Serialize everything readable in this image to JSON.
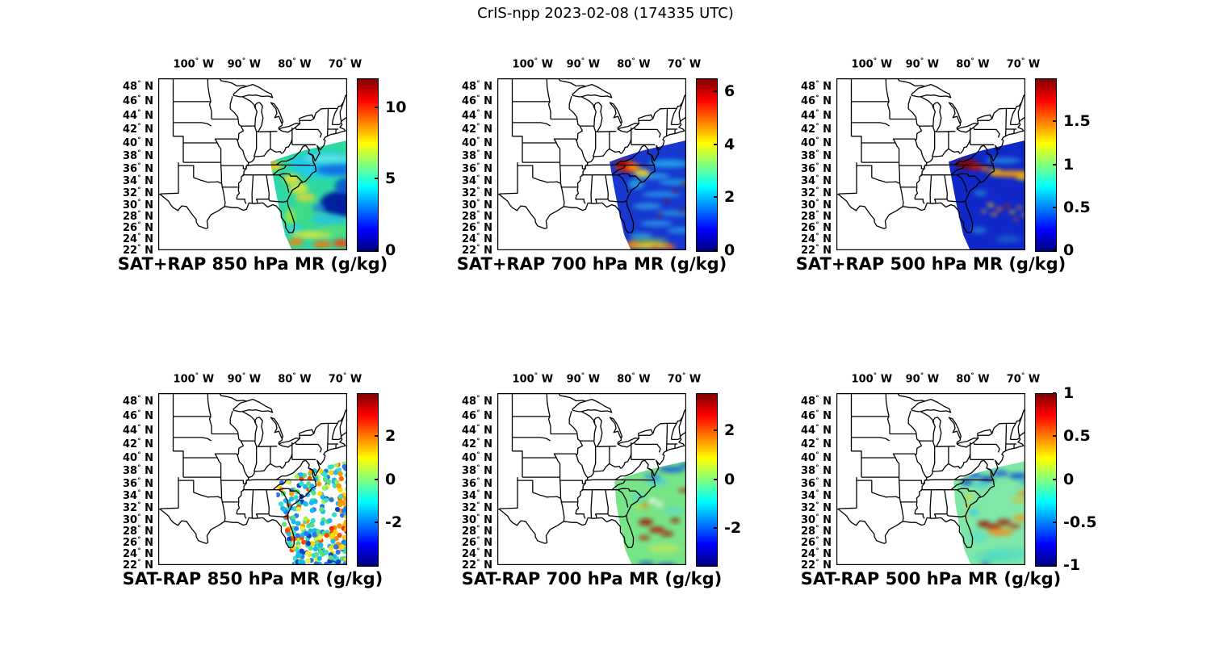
{
  "figure_title": "CrIS-npp 2023-02-08 (174335 UTC)",
  "axes": {
    "lon_tick_values": [
      -100,
      -90,
      -80,
      -70
    ],
    "lon_tick_labels": [
      "100° W",
      "90° W",
      "80° W",
      "70° W"
    ],
    "lat_tick_values": [
      48,
      46,
      44,
      42,
      40,
      38,
      36,
      34,
      32,
      30,
      28,
      26,
      24,
      22
    ],
    "lat_label_suffix": "N",
    "lon_label_suffix": "W",
    "lon_domain": [
      -107,
      -69.6
    ],
    "lat_domain": [
      22,
      49.05
    ]
  },
  "map": {
    "region": "Contiguous United States east of ~107W with state boundaries, Great Lakes, Gulf and Atlantic coasts",
    "projection": "mercator"
  },
  "colorbar_style": {
    "colormap": "jet",
    "bottom_color": "#000080",
    "top_color": "#800000"
  },
  "chart_data": [
    {
      "id": "sat_plus_rap_850",
      "type": "heatmap",
      "title": "SAT+RAP 850 hPa MR (g/kg)",
      "units": "g/kg",
      "colormap": "jet",
      "colorbar_range": [
        0,
        12
      ],
      "colorbar_ticks": [
        0,
        5,
        10
      ],
      "swath_note": "CrIS swath over SE US coast and western Atlantic: mostly 4-7 g/kg (green/cyan), dry dark-blue pocket near 29-31N offshore, yellow coastal arc, moist 9-11 g/kg orange band near 23-24N, yellow maximum at swath tip near 36N inland"
    },
    {
      "id": "sat_plus_rap_700",
      "type": "heatmap",
      "title": "SAT+RAP 700 hPa MR (g/kg)",
      "units": "g/kg",
      "colormap": "jet",
      "colorbar_range": [
        0,
        6.5
      ],
      "colorbar_ticks": [
        0,
        2,
        4,
        6
      ],
      "swath_note": "mostly 0.5-2 g/kg (dark blue with cyan streaks) offshore; 5-6.5 g/kg red/orange maximum over western NC/VA near 36-37N; yellow-orange moist band near 22-23N; scattered dark-red speckles mid-ocean"
    },
    {
      "id": "sat_plus_rap_500",
      "type": "heatmap",
      "title": "SAT+RAP 500 hPa MR (g/kg)",
      "units": "g/kg",
      "colormap": "jet",
      "colorbar_range": [
        0,
        2
      ],
      "colorbar_ticks": [
        0,
        0.5,
        1,
        1.5
      ],
      "swath_note": "mostly below 0.5 g/kg (dark blue); 1.8-2 g/kg dark-red maximum along 36-37N inland; 1-1.5 g/kg orange/yellow streak near 35N to the east edge; speckled yellow/red patches 27-30N"
    },
    {
      "id": "sat_minus_rap_850",
      "type": "scatter",
      "title": "SAT-RAP 850 hPa MR (g/kg)",
      "units": "g/kg",
      "colormap": "jet",
      "colorbar_range": [
        -4,
        4
      ],
      "colorbar_ticks": [
        -2,
        0,
        2
      ],
      "swath_note": "scattered point differences offshore 22-40N: +2 to +3 g/kg orange/red cluster near 27-29N and along 70W at 34-37N, mixed -2 to +1 cyan/green/yellow elsewhere, white data gaps near 31-33N"
    },
    {
      "id": "sat_minus_rap_700",
      "type": "heatmap",
      "title": "SAT-RAP 700 hPa MR (g/kg)",
      "units": "g/kg",
      "colormap": "jet",
      "colorbar_range": [
        -3.5,
        3.5
      ],
      "colorbar_ticks": [
        -2,
        0,
        2
      ],
      "swath_note": "near-zero (green) over most of swath; +3 g/kg dark-red patches 26-30N; -2 to -3 blue streaks near 38N and along 22N; small orange/yellow spots near 32N coast"
    },
    {
      "id": "sat_minus_rap_500",
      "type": "heatmap",
      "title": "SAT-RAP 500 hPa MR (g/kg)",
      "units": "g/kg",
      "colormap": "jet",
      "colorbar_range": [
        -1,
        1
      ],
      "colorbar_ticks": [
        -1,
        -0.5,
        0,
        0.5,
        1
      ],
      "swath_note": "near-zero pale green/cyan background; -0.5 to -1 blue pockets along 36-38N near VA/NC coast; +0.5 to +1 orange/dark-red band 27-30N extending to east edge; yellow dots along SC/GA coast"
    }
  ]
}
